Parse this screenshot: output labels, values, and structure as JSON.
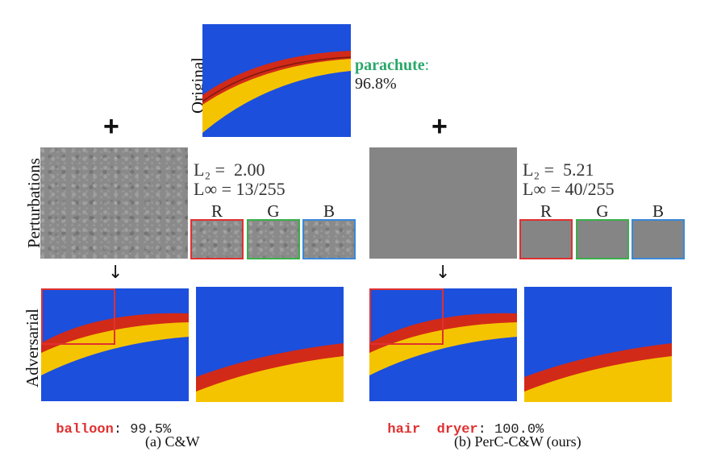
{
  "rows": {
    "original": "Original",
    "perturbations": "Perturbations",
    "adversarial": "Adversarial"
  },
  "original_prediction": {
    "label": "parachute",
    "suffix": ":",
    "confidence": "96.8%"
  },
  "plus_symbol": "+",
  "arrow_symbol": "↓",
  "channels": [
    "R",
    "G",
    "B"
  ],
  "methods": [
    {
      "caption": "(a) C&W",
      "l2_label": "L₂ =  2.00",
      "linf_label": "L∞ = 13/255",
      "adv_label": "balloon",
      "adv_confidence": "99.5%"
    },
    {
      "caption": "(b) PerC-C&W (ours)",
      "l2_label": "L₂ =  5.21",
      "linf_label": "L∞ = 40/255",
      "adv_label": "hair  dryer",
      "adv_confidence": "100.0%"
    }
  ],
  "colors": {
    "sky": "#1c4fdc",
    "canopy_yellow": "#f5c400",
    "canopy_red": "#d22a18",
    "label_green": "#2aa86a",
    "label_red": "#e03030",
    "border_r": "#e03030",
    "border_g": "#38b04a",
    "border_b": "#3a88d8"
  }
}
